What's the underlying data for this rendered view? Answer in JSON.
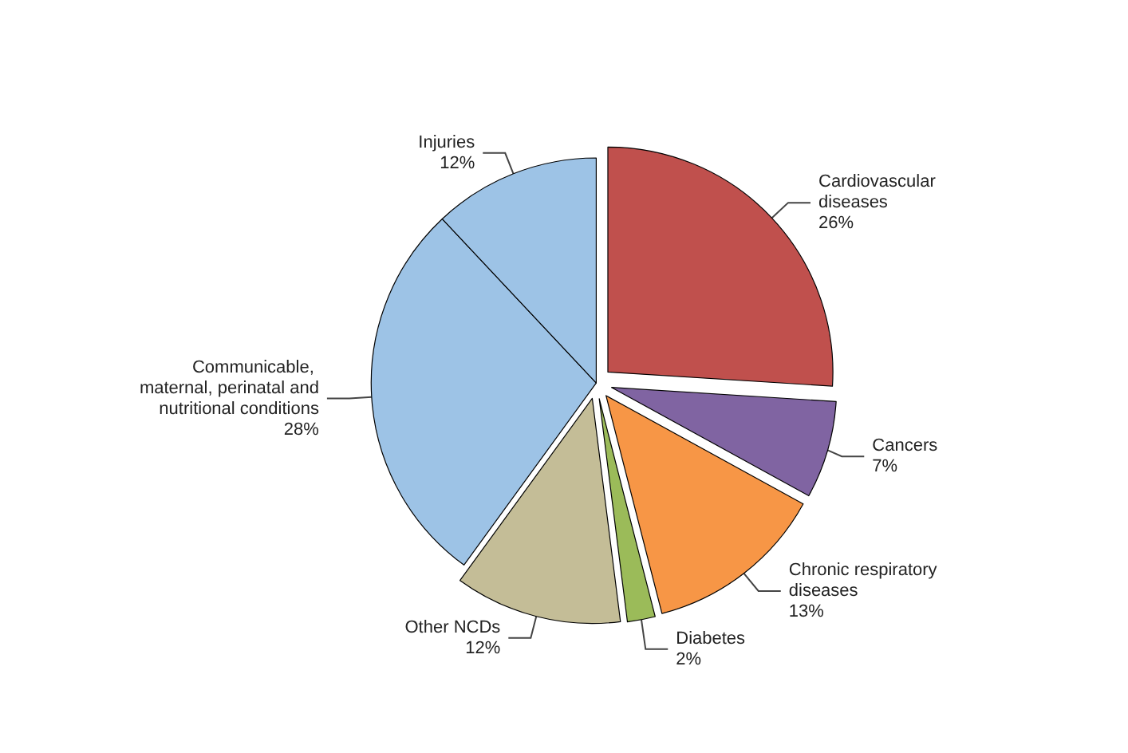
{
  "chart_data": {
    "type": "pie",
    "categories": [
      "Cardiovascular diseases",
      "Cancers",
      "Chronic respiratory diseases",
      "Diabetes",
      "Other NCDs",
      "Communicable, maternal, perinatal and nutritional conditions",
      "Injuries"
    ],
    "values": [
      26,
      7,
      13,
      2,
      12,
      28,
      12
    ],
    "value_labels": [
      "26%",
      "7%",
      "13%",
      "2%",
      "12%",
      "28%",
      "12%"
    ],
    "colors": [
      "#c0504d",
      "#8064a2",
      "#f79646",
      "#9bbb59",
      "#c4bd97",
      "#9dc3e6",
      "#9dc3e6"
    ],
    "legend": false
  }
}
